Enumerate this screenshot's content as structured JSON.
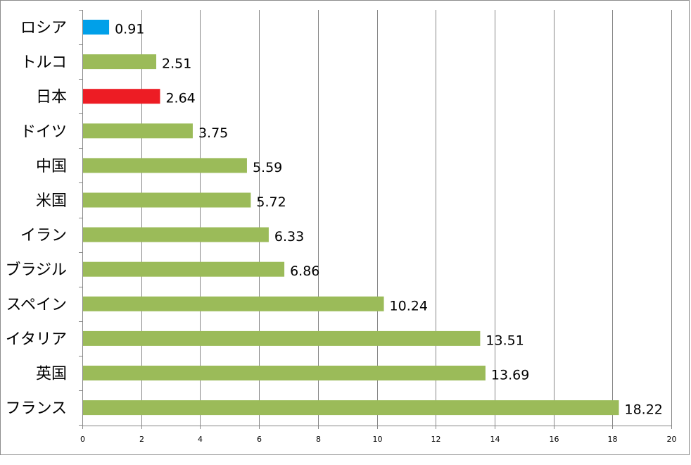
{
  "chart_data": {
    "type": "bar",
    "orientation": "horizontal",
    "categories": [
      "ロシア",
      "トルコ",
      "日本",
      "ドイツ",
      "中国",
      "米国",
      "イラン",
      "ブラジル",
      "スペイン",
      "イタリア",
      "英国",
      "フランス"
    ],
    "values": [
      0.91,
      2.51,
      2.64,
      3.75,
      5.59,
      5.72,
      6.33,
      6.86,
      10.24,
      13.51,
      13.69,
      18.22
    ],
    "value_labels": [
      "0.91",
      "2.51",
      "2.64",
      "3.75",
      "5.59",
      "5.72",
      "6.33",
      "6.86",
      "10.24",
      "13.51",
      "13.69",
      "18.22"
    ],
    "bar_colors": [
      "#00a0e9",
      "#9bbb59",
      "#ed1c24",
      "#9bbb59",
      "#9bbb59",
      "#9bbb59",
      "#9bbb59",
      "#9bbb59",
      "#9bbb59",
      "#9bbb59",
      "#9bbb59",
      "#9bbb59"
    ],
    "xlim": [
      0,
      20
    ],
    "x_ticks": [
      0,
      2,
      4,
      6,
      8,
      10,
      12,
      14,
      16,
      18,
      20
    ],
    "x_tick_labels": [
      "0",
      "2",
      "4",
      "6",
      "8",
      "10",
      "12",
      "14",
      "16",
      "18",
      "20"
    ],
    "grid": "vertical",
    "legend": "none",
    "title": "",
    "xlabel": "",
    "ylabel": ""
  },
  "colors": {
    "default_bar": "#9bbb59",
    "highlight_russia": "#00a0e9",
    "highlight_japan": "#ed1c24",
    "gridline": "#868686",
    "axis": "#868686",
    "text": "#000000"
  }
}
